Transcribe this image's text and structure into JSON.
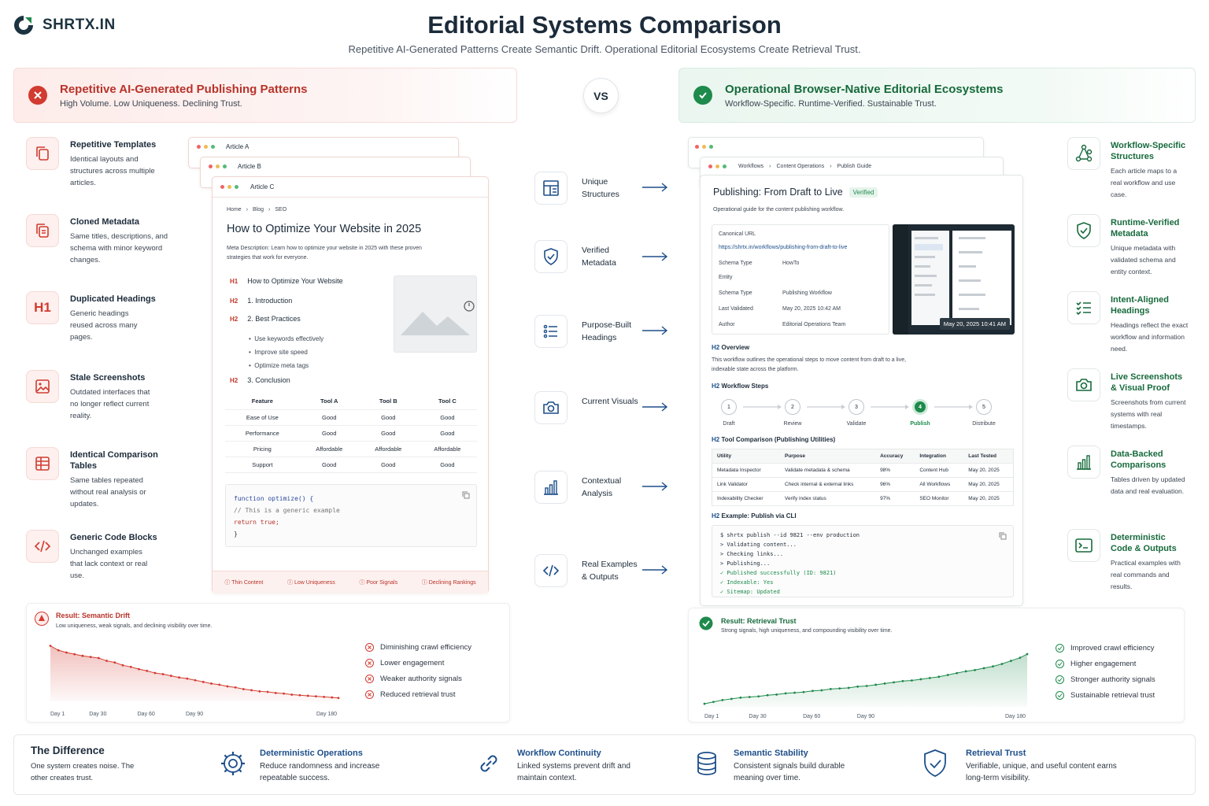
{
  "logo": {
    "text": "SHRTX.IN",
    "icon": "shrtx-logo-icon"
  },
  "title": "Editorial Systems Comparison",
  "subtitle": "Repetitive AI-Generated Patterns Create Semantic Drift. Operational Editorial Ecosystems Create Retrieval Trust.",
  "vs": "VS",
  "colors": {
    "red": "#d23b30",
    "green": "#1e8a4c",
    "blue": "#1d4f8a",
    "dark": "#1c2b3a"
  },
  "left_header": {
    "title": "Repetitive AI-Generated Publishing Patterns",
    "sub": "High Volume. Low Uniqueness. Declining Trust.",
    "icon": "x-circle-icon"
  },
  "right_header": {
    "title": "Operational Browser-Native Editorial Ecosystems",
    "sub": "Workflow-Specific. Runtime-Verified. Sustainable Trust.",
    "icon": "check-circle-icon"
  },
  "left_features": [
    {
      "title": "Repetitive Templates",
      "desc": "Identical layouts and structures across multiple articles.",
      "icon": "copy-icon"
    },
    {
      "title": "Cloned Metadata",
      "desc": "Same titles, descriptions, and schema with minor keyword changes.",
      "icon": "duplicate-doc-icon"
    },
    {
      "title": "Duplicated Headings",
      "desc": "Generic headings reused across many pages.",
      "icon": "h1-icon"
    },
    {
      "title": "Stale Screenshots",
      "desc": "Outdated interfaces that no longer reflect current reality.",
      "icon": "image-icon"
    },
    {
      "title": "Identical Comparison Tables",
      "desc": "Same tables repeated without real analysis or updates.",
      "icon": "table-icon"
    },
    {
      "title": "Generic Code Blocks",
      "desc": "Unchanged examples that lack context or real use.",
      "icon": "code-icon"
    }
  ],
  "right_features": [
    {
      "title": "Workflow-Specific Structures",
      "desc": "Each article maps to a real workflow and use case.",
      "icon": "workflow-icon"
    },
    {
      "title": "Runtime-Verified Metadata",
      "desc": "Unique metadata with validated schema and entity context.",
      "icon": "shield-check-icon"
    },
    {
      "title": "Intent-Aligned Headings",
      "desc": "Headings reflect the exact workflow and information need.",
      "icon": "checklist-icon"
    },
    {
      "title": "Live Screenshots & Visual Proof",
      "desc": "Screenshots from current systems with real timestamps.",
      "icon": "camera-icon"
    },
    {
      "title": "Data-Backed Comparisons",
      "desc": "Tables driven by updated data and real evaluation.",
      "icon": "bar-chart-icon"
    },
    {
      "title": "Deterministic Code & Outputs",
      "desc": "Practical examples with real commands and results.",
      "icon": "terminal-icon"
    }
  ],
  "left_card": {
    "tab_a": "Article A",
    "tab_b": "Article B",
    "tab_c": "Article C",
    "breadcrumb": [
      "Home",
      "Blog",
      "SEO"
    ],
    "heading": "How to Optimize Your Website in 2025",
    "meta": "Meta Description: Learn how to optimize your website in 2025 with these proven strategies that work for everyone.",
    "outline": [
      {
        "tag": "H1",
        "text": "How to Optimize Your Website"
      },
      {
        "tag": "H2",
        "text": "1. Introduction"
      },
      {
        "tag": "H2",
        "text": "2. Best Practices"
      }
    ],
    "bullets": [
      "Use keywords effectively",
      "Improve site speed",
      "Optimize meta tags"
    ],
    "conclusion": {
      "tag": "H2",
      "text": "3. Conclusion"
    },
    "table": [
      [
        "Feature",
        "Tool A",
        "Tool B",
        "Tool C"
      ],
      [
        "Ease of Use",
        "Good",
        "Good",
        "Good"
      ],
      [
        "Performance",
        "Good",
        "Good",
        "Good"
      ],
      [
        "Pricing",
        "Affordable",
        "Affordable",
        "Affordable"
      ],
      [
        "Support",
        "Good",
        "Good",
        "Good"
      ]
    ],
    "code": [
      "function optimize() {",
      "  // This is a generic example",
      "  return true;",
      "}"
    ],
    "warnings": [
      "Thin Content",
      "Low Uniqueness",
      "Poor Signals",
      "Declining Rankings"
    ]
  },
  "right_card": {
    "breadcrumb": [
      "Workflows",
      "Content Operations",
      "Publish Guide"
    ],
    "heading": "Publishing: From Draft to Live",
    "badge": "Verified",
    "desc": "Operational guide for the content publishing workflow.",
    "meta_rows": [
      {
        "k": "Canonical URL",
        "v": ""
      },
      {
        "k": "https://shrtx.in/workflows/publishing-from-draft-to-live",
        "v": ""
      },
      {
        "k": "Schema Type",
        "v": "HowTo"
      },
      {
        "k": "Entity",
        "v": ""
      },
      {
        "k": "Schema Type",
        "v": "Publishing Workflow"
      },
      {
        "k": "Last Validated",
        "v": "May 20, 2025 10:42 AM"
      },
      {
        "k": "Author",
        "v": "Editorial Operations Team"
      }
    ],
    "screenshot_stamp": "May 20, 2025 10:41 AM",
    "overview_tag": "H2",
    "overview_title": "Overview",
    "overview_text": "This workflow outlines the operational steps to move content from draft to a live, indexable state across the platform.",
    "steps_title": "Workflow Steps",
    "steps": [
      {
        "n": "1",
        "label": "Draft"
      },
      {
        "n": "2",
        "label": "Review"
      },
      {
        "n": "3",
        "label": "Validate"
      },
      {
        "n": "4",
        "label": "Publish"
      },
      {
        "n": "5",
        "label": "Distribute"
      }
    ],
    "tool_title": "Tool Comparison (Publishing Utilities)",
    "tool_table": [
      [
        "Utility",
        "Purpose",
        "Accuracy",
        "Integration",
        "Last Tested"
      ],
      [
        "Metadata Inspector",
        "Validate metadata & schema",
        "98%",
        "Content Hub",
        "May 20, 2025"
      ],
      [
        "Link Validator",
        "Check internal & external links",
        "96%",
        "All Workflows",
        "May 20, 2025"
      ],
      [
        "Indexability Checker",
        "Verify index status",
        "97%",
        "SEO Monitor",
        "May 20, 2025"
      ]
    ],
    "cli_title": "Example: Publish via CLI",
    "cli": [
      "$ shrtx publish --id 9821 --env production",
      "> Validating content...",
      "> Checking links...",
      "> Publishing...",
      "✓ Published successfully (ID: 9821)",
      "✓ Indexable: Yes",
      "✓ Sitemap: Updated"
    ]
  },
  "middle": [
    {
      "label": "Unique Structures",
      "icon": "layout-icon"
    },
    {
      "label": "Verified Metadata",
      "icon": "shield-check-icon"
    },
    {
      "label": "Purpose-Built Headings",
      "icon": "list-icon"
    },
    {
      "label": "Current Visuals",
      "icon": "camera-icon"
    },
    {
      "label": "Contextual Analysis",
      "icon": "bar-chart-icon"
    },
    {
      "label": "Real Examples & Outputs",
      "icon": "code-icon"
    }
  ],
  "left_result": {
    "title": "Result: Semantic Drift",
    "sub": "Low uniqueness, weak signals, and declining visibility over time.",
    "items": [
      "Diminishing crawl efficiency",
      "Lower engagement",
      "Weaker authority signals",
      "Reduced retrieval trust"
    ]
  },
  "right_result": {
    "title": "Result: Retrieval Trust",
    "sub": "Strong signals, high uniqueness, and compounding visibility over time.",
    "items": [
      "Improved crawl efficiency",
      "Higher engagement",
      "Stronger authority signals",
      "Sustainable retrieval trust"
    ]
  },
  "chart_data": [
    {
      "type": "area",
      "title": "",
      "x_ticks": [
        "Day 1",
        "Day 30",
        "Day 60",
        "Day 90",
        "Day 180"
      ],
      "x": [
        1,
        6,
        11,
        16,
        21,
        26,
        31,
        36,
        41,
        46,
        51,
        56,
        61,
        66,
        71,
        76,
        81,
        86,
        91,
        96,
        101,
        106,
        111,
        116,
        121,
        126,
        131,
        136,
        141,
        146,
        151,
        156,
        161,
        166,
        171,
        176,
        180
      ],
      "values": [
        100,
        92,
        88,
        85,
        82,
        80,
        78,
        73,
        70,
        65,
        62,
        58,
        55,
        51,
        49,
        46,
        43,
        41,
        38,
        35,
        32,
        30,
        27,
        25,
        22,
        20,
        18,
        17,
        15,
        14,
        12,
        11,
        10,
        9,
        8,
        7,
        6
      ],
      "ylim": [
        0,
        105
      ],
      "color": "#d23b30"
    },
    {
      "type": "area",
      "title": "",
      "x_ticks": [
        "Day 1",
        "Day 30",
        "Day 60",
        "Day 90",
        "Day 180"
      ],
      "x": [
        1,
        6,
        11,
        16,
        21,
        26,
        31,
        36,
        41,
        46,
        51,
        56,
        61,
        66,
        71,
        76,
        81,
        86,
        91,
        96,
        101,
        106,
        111,
        116,
        121,
        126,
        131,
        136,
        141,
        146,
        151,
        156,
        161,
        166,
        171,
        176,
        180
      ],
      "values": [
        5,
        8,
        11,
        13,
        15,
        16,
        17,
        19,
        20,
        22,
        23,
        24,
        26,
        27,
        29,
        30,
        31,
        33,
        34,
        36,
        38,
        40,
        42,
        43,
        45,
        47,
        49,
        52,
        55,
        58,
        60,
        63,
        66,
        70,
        75,
        80,
        86
      ],
      "ylim": [
        0,
        95
      ],
      "color": "#1e8a4c"
    }
  ],
  "footer": {
    "title": "The Difference",
    "desc": "One system creates noise. The other creates trust.",
    "items": [
      {
        "title": "Deterministic Operations",
        "desc": "Reduce randomness and increase repeatable success.",
        "icon": "gear-icon"
      },
      {
        "title": "Workflow Continuity",
        "desc": "Linked systems prevent drift and maintain context.",
        "icon": "link-icon"
      },
      {
        "title": "Semantic Stability",
        "desc": "Consistent signals build durable meaning over time.",
        "icon": "database-icon"
      },
      {
        "title": "Retrieval Trust",
        "desc": "Verifiable, unique, and useful content earns long-term visibility.",
        "icon": "shield-check-icon"
      }
    ]
  }
}
